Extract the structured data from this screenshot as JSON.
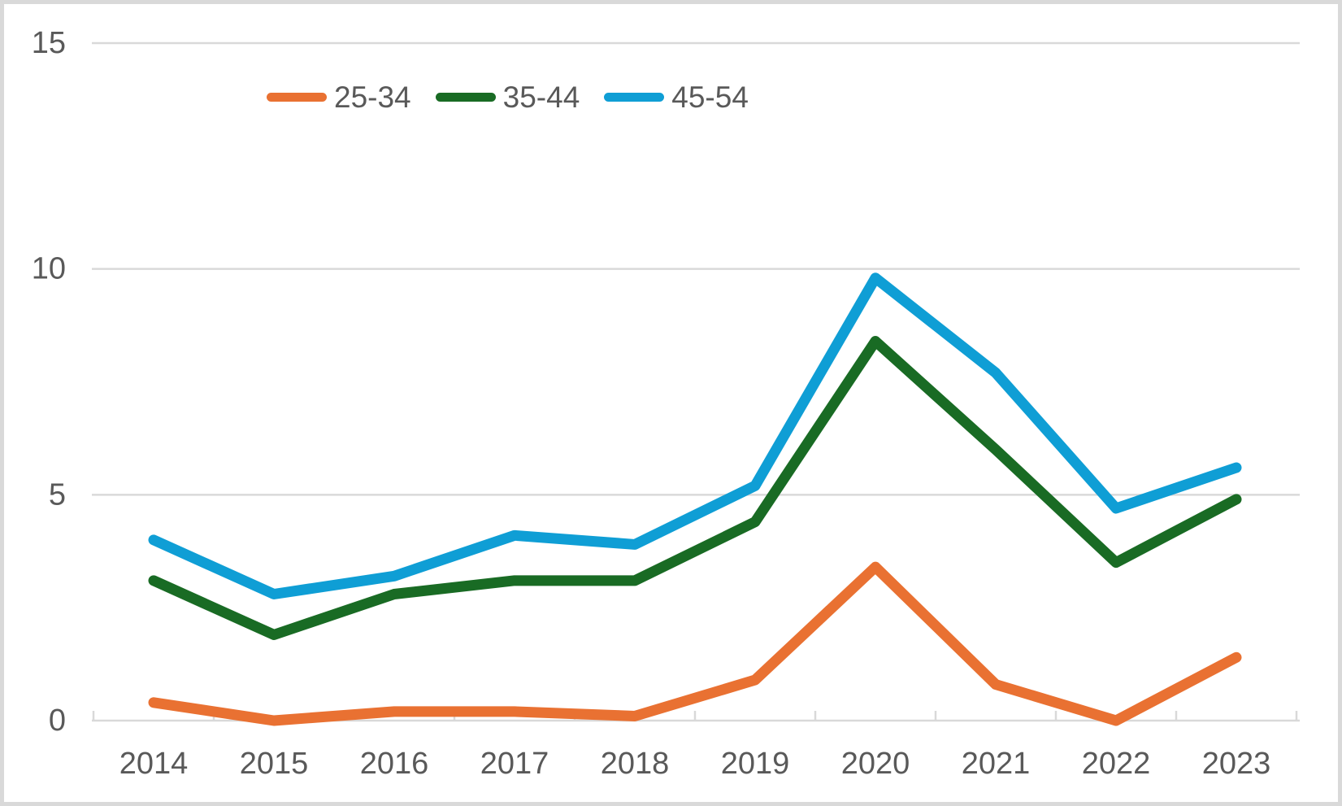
{
  "chart_data": {
    "type": "line",
    "title": "",
    "xlabel": "",
    "ylabel": "",
    "categories": [
      "2014",
      "2015",
      "2016",
      "2017",
      "2018",
      "2019",
      "2020",
      "2021",
      "2022",
      "2023"
    ],
    "series": [
      {
        "name": "25-34",
        "color": "#E97132",
        "values": [
          0.4,
          0.0,
          0.2,
          0.2,
          0.1,
          0.9,
          3.4,
          0.8,
          0.0,
          1.4
        ]
      },
      {
        "name": "35-44",
        "color": "#196B24",
        "values": [
          3.1,
          1.9,
          2.8,
          3.1,
          3.1,
          4.4,
          8.4,
          6.0,
          3.5,
          4.9
        ]
      },
      {
        "name": "45-54",
        "color": "#0F9ED5",
        "values": [
          4.0,
          2.8,
          3.2,
          4.1,
          3.9,
          5.2,
          9.8,
          7.7,
          4.7,
          5.6
        ]
      }
    ],
    "yticks": [
      0,
      5,
      10,
      15
    ],
    "ylim": [
      0,
      15
    ],
    "grid": true,
    "legend_position": "top"
  },
  "styles": {
    "grid_color": "#D9D9D9",
    "axis_tick_color": "#D9D9D9",
    "text_color": "#595959",
    "background": "#FFFFFF",
    "border_color": "#D9D9D9"
  }
}
